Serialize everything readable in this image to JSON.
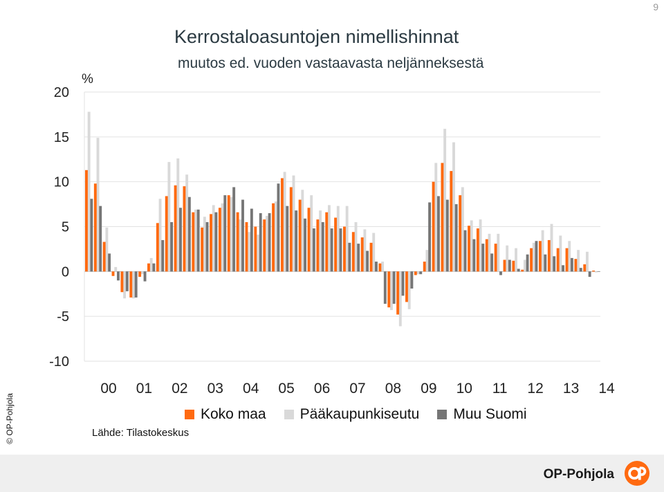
{
  "page_number": "9",
  "title": "Kerrostaloasuntojen nimellishinnat",
  "subtitle": "muutos ed. vuoden vastaavasta neljänneksestä",
  "source": "Lähde: Tilastokeskus",
  "copyright": "© OP-Pohjola",
  "brand": {
    "name": "OP-Pohjola",
    "logo_icon": "op-logo-icon",
    "logo_color": "#ff6a10"
  },
  "chart_data": {
    "type": "bar",
    "ylabel": "%",
    "ylim": [
      -10,
      20
    ],
    "yticks": [
      -10,
      -5,
      0,
      5,
      10,
      15,
      20
    ],
    "year_labels": [
      "00",
      "01",
      "02",
      "03",
      "04",
      "05",
      "06",
      "07",
      "08",
      "09",
      "10",
      "11",
      "12",
      "13",
      "14"
    ],
    "categories": [
      "2000Q1",
      "2000Q2",
      "2000Q3",
      "2000Q4",
      "2001Q1",
      "2001Q2",
      "2001Q3",
      "2001Q4",
      "2002Q1",
      "2002Q2",
      "2002Q3",
      "2002Q4",
      "2003Q1",
      "2003Q2",
      "2003Q3",
      "2003Q4",
      "2004Q1",
      "2004Q2",
      "2004Q3",
      "2004Q4",
      "2005Q1",
      "2005Q2",
      "2005Q3",
      "2005Q4",
      "2006Q1",
      "2006Q2",
      "2006Q3",
      "2006Q4",
      "2007Q1",
      "2007Q2",
      "2007Q3",
      "2007Q4",
      "2008Q1",
      "2008Q2",
      "2008Q3",
      "2008Q4",
      "2009Q1",
      "2009Q2",
      "2009Q3",
      "2009Q4",
      "2010Q1",
      "2010Q2",
      "2010Q3",
      "2010Q4",
      "2011Q1",
      "2011Q2",
      "2011Q3",
      "2011Q4",
      "2012Q1",
      "2012Q2",
      "2012Q3",
      "2012Q4",
      "2013Q1",
      "2013Q2",
      "2013Q3",
      "2013Q4",
      "2014Q1",
      "2014Q2"
    ],
    "series": [
      {
        "name": "Koko maa",
        "color": "#ff6a10",
        "values": [
          11.3,
          9.8,
          3.3,
          -0.5,
          -2.3,
          -2.9,
          -0.6,
          0.9,
          5.4,
          8.4,
          9.6,
          9.5,
          6.6,
          4.9,
          6.4,
          7.1,
          8.5,
          6.6,
          5.5,
          5.0,
          5.8,
          7.6,
          10.4,
          9.4,
          8.0,
          7.1,
          5.8,
          6.6,
          6.0,
          5.0,
          4.4,
          3.8,
          3.2,
          0.9,
          -4.0,
          -4.8,
          -3.4,
          -0.4,
          1.1,
          10.0,
          12.1,
          11.2,
          8.5,
          5.1,
          4.8,
          3.6,
          3.1,
          1.3,
          1.2,
          0.2,
          2.6,
          3.4,
          3.5,
          2.6,
          2.6,
          1.4,
          0.8,
          0.1
        ]
      },
      {
        "name": "Pääkaupunkiseutu",
        "color": "#d9d9d9",
        "values": [
          17.8,
          14.9,
          4.9,
          0.5,
          -3.0,
          -3.0,
          -0.3,
          1.5,
          8.1,
          12.2,
          12.6,
          10.8,
          6.9,
          6.1,
          7.4,
          7.6,
          8.3,
          5.8,
          4.4,
          4.1,
          6.2,
          7.8,
          11.1,
          10.7,
          9.1,
          8.5,
          6.8,
          7.4,
          7.3,
          7.3,
          5.5,
          4.7,
          4.3,
          1.1,
          -4.3,
          -6.1,
          -4.2,
          -0.3,
          2.4,
          12.1,
          15.9,
          14.4,
          9.4,
          5.7,
          5.8,
          4.2,
          4.2,
          2.9,
          2.6,
          1.3,
          3.2,
          4.6,
          5.3,
          4.0,
          3.4,
          2.4,
          2.2,
          -0.1
        ]
      },
      {
        "name": "Muu Suomi",
        "color": "#767676",
        "values": [
          8.1,
          7.3,
          2.0,
          -1.0,
          -2.2,
          -2.9,
          -1.1,
          0.9,
          3.5,
          5.5,
          7.1,
          8.3,
          6.9,
          5.5,
          6.6,
          8.5,
          9.4,
          8.0,
          7.0,
          6.5,
          6.5,
          9.8,
          7.3,
          6.8,
          5.9,
          4.8,
          5.5,
          4.8,
          4.8,
          3.2,
          3.1,
          2.3,
          1.1,
          -3.6,
          -3.6,
          -2.7,
          -1.9,
          -0.3,
          7.7,
          8.4,
          8.0,
          7.5,
          4.6,
          3.6,
          3.1,
          2.0,
          -0.4,
          1.3,
          0.3,
          1.9,
          3.4,
          1.9,
          1.7,
          0.7,
          1.5,
          0.4,
          -0.6,
          0.0
        ]
      }
    ],
    "grid": true,
    "legend_position": "bottom"
  }
}
